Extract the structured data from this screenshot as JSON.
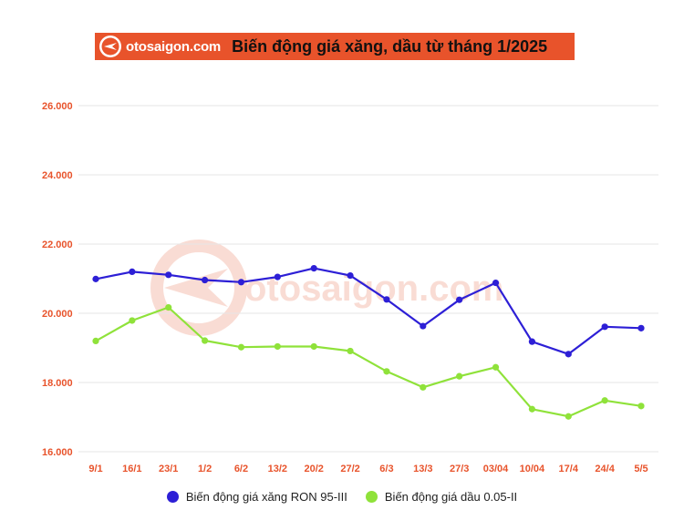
{
  "header": {
    "brand": "otosaigon.com",
    "title": "Biến động giá xăng, dầu từ tháng 1/2025"
  },
  "watermark": "otosaigon.com",
  "colors": {
    "accent": "#e8532b",
    "ron95": "#2d1fd6",
    "diesel": "#8fe23a",
    "tick": "#e8532b",
    "grid": "#e6e6e6"
  },
  "chart_data": {
    "type": "line",
    "categories": [
      "9/1",
      "16/1",
      "23/1",
      "1/2",
      "6/2",
      "13/2",
      "20/2",
      "27/2",
      "6/3",
      "13/3",
      "27/3",
      "03/04",
      "10/04",
      "17/4",
      "24/4",
      "5/5"
    ],
    "series": [
      {
        "name": "Biến động giá xăng RON 95-III",
        "values": [
          20990,
          21200,
          21110,
          20960,
          20900,
          21050,
          21300,
          21090,
          20400,
          19630,
          20390,
          20880,
          19180,
          18820,
          19610,
          19570
        ]
      },
      {
        "name": "Biến động giá dầu 0.05-II",
        "values": [
          19200,
          19790,
          20170,
          19210,
          19020,
          19040,
          19040,
          18910,
          18320,
          17860,
          18180,
          18440,
          17230,
          17020,
          17480,
          17320
        ]
      }
    ],
    "yticks": [
      "16.000",
      "18.000",
      "20.000",
      "22.000",
      "24.000",
      "26.000"
    ],
    "ytick_values": [
      16000,
      18000,
      20000,
      22000,
      24000,
      26000
    ],
    "ylim": [
      16000,
      26000
    ],
    "grid": true,
    "legend": "bottom",
    "xlabel": "",
    "ylabel": ""
  }
}
